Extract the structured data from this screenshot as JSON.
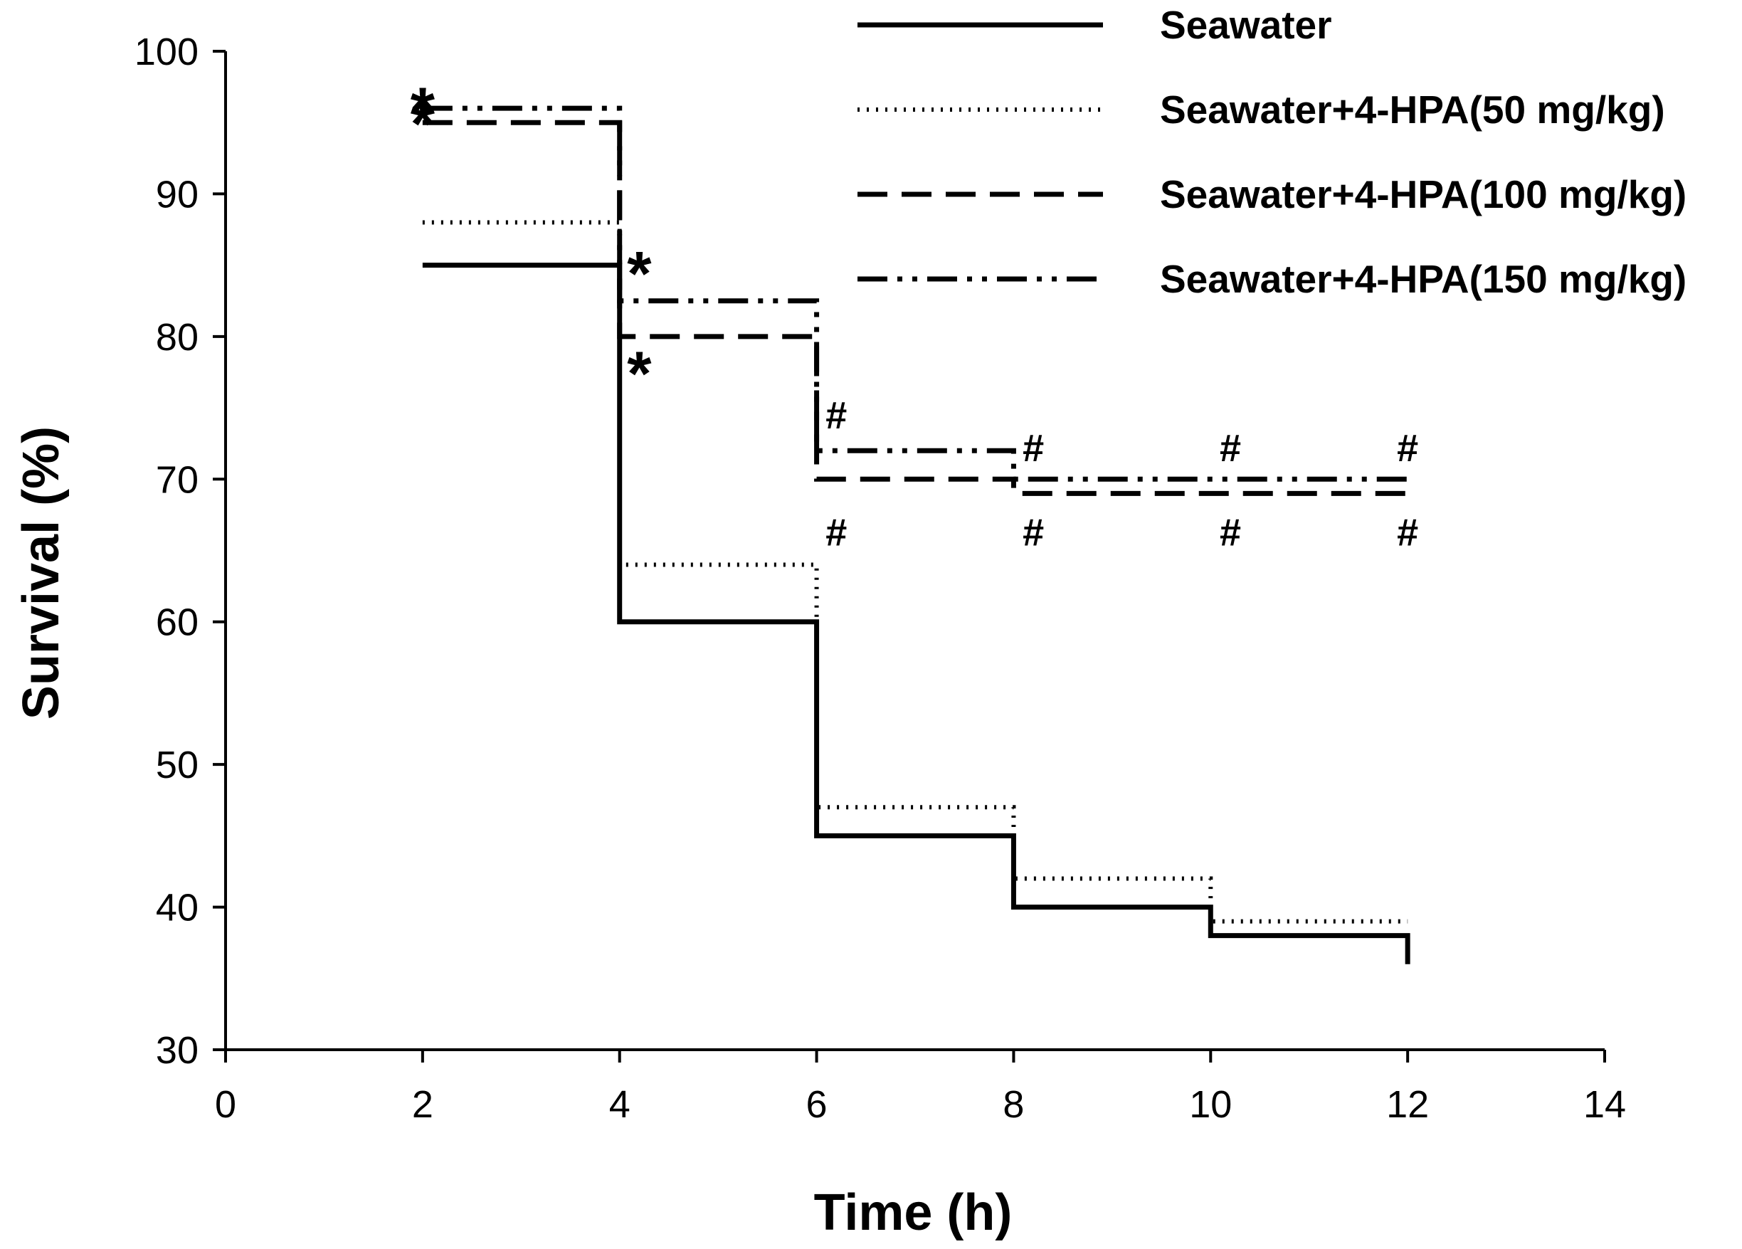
{
  "chart_data": {
    "type": "line",
    "title": "",
    "xlabel": "Time (h)",
    "ylabel": "Survival (%)",
    "xlim": [
      0,
      14
    ],
    "ylim": [
      30,
      100
    ],
    "xticks": [
      "0",
      "2",
      "4",
      "6",
      "8",
      "10",
      "12",
      "14"
    ],
    "yticks": [
      "30",
      "40",
      "50",
      "60",
      "70",
      "80",
      "90",
      "100"
    ],
    "grid": false,
    "legend_position": "top-right",
    "step": true,
    "series": [
      {
        "name": "Seawater",
        "style": "solid",
        "x": [
          2,
          4,
          6,
          8,
          10,
          12
        ],
        "values": [
          85,
          60,
          45,
          40,
          38,
          36
        ]
      },
      {
        "name": "Seawater+4-HPA(50 mg/kg)",
        "style": "dotted",
        "x": [
          2,
          4,
          6,
          8,
          10,
          12
        ],
        "values": [
          88,
          64,
          47,
          42,
          39,
          39
        ]
      },
      {
        "name": "Seawater+4-HPA(100 mg/kg)",
        "style": "dashed",
        "x": [
          2,
          4,
          6,
          8,
          10,
          12
        ],
        "values": [
          95,
          80,
          70,
          69,
          69,
          69
        ]
      },
      {
        "name": "Seawater+4-HPA(150 mg/kg)",
        "style": "dash-dot-dot",
        "x": [
          2,
          4,
          6,
          8,
          10,
          12
        ],
        "values": [
          96,
          82.5,
          72,
          70,
          70,
          70
        ]
      }
    ],
    "annotations": [
      {
        "text": "*",
        "x": 2,
        "y": 96,
        "kind": "star",
        "note": "above"
      },
      {
        "text": "*",
        "x": 2,
        "y": 95,
        "kind": "star",
        "note": "below"
      },
      {
        "text": "*",
        "x": 4.2,
        "y": 84.5,
        "kind": "star",
        "note": ""
      },
      {
        "text": "*",
        "x": 4.2,
        "y": 77.5,
        "kind": "star",
        "note": ""
      },
      {
        "text": "#",
        "x": 6.2,
        "y": 74.5,
        "kind": "hash",
        "note": ""
      },
      {
        "text": "#",
        "x": 6.2,
        "y": 66.3,
        "kind": "hash",
        "note": ""
      },
      {
        "text": "#",
        "x": 8.2,
        "y": 72.2,
        "kind": "hash",
        "note": ""
      },
      {
        "text": "#",
        "x": 8.2,
        "y": 66.3,
        "kind": "hash",
        "note": ""
      },
      {
        "text": "#",
        "x": 10.2,
        "y": 72.2,
        "kind": "hash",
        "note": ""
      },
      {
        "text": "#",
        "x": 10.2,
        "y": 66.3,
        "kind": "hash",
        "note": ""
      },
      {
        "text": "#",
        "x": 12,
        "y": 72.2,
        "kind": "hash",
        "note": ""
      },
      {
        "text": "#",
        "x": 12,
        "y": 66.3,
        "kind": "hash",
        "note": ""
      }
    ]
  }
}
